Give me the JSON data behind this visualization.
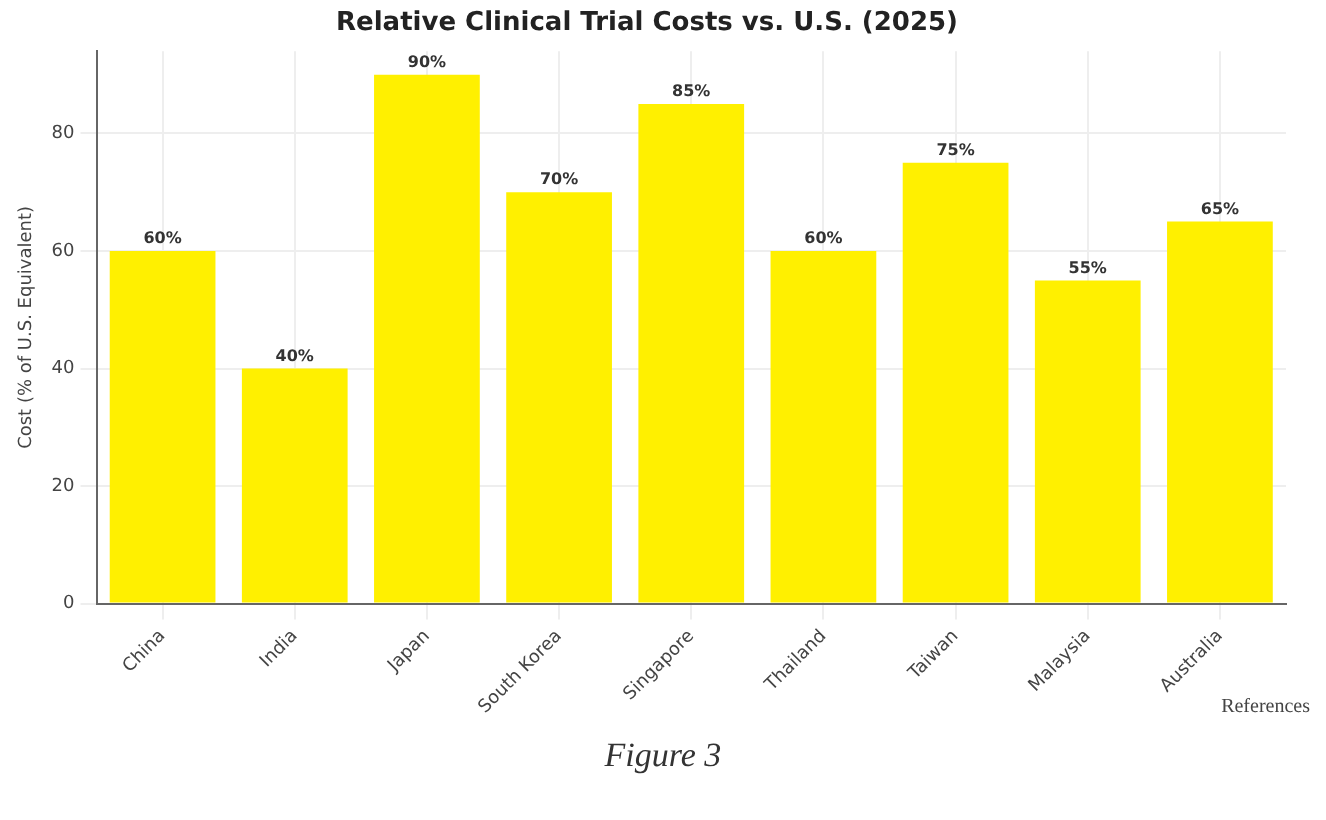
{
  "chart_data": {
    "type": "bar",
    "title": "Relative Clinical Trial Costs vs. U.S. (2025)",
    "ylabel": "Cost (% of U.S. Equivalent)",
    "categories": [
      "China",
      "India",
      "Japan",
      "South Korea",
      "Singapore",
      "Thailand",
      "Taiwan",
      "Malaysia",
      "Australia"
    ],
    "values": [
      60,
      40,
      90,
      70,
      85,
      60,
      75,
      55,
      65
    ],
    "value_labels": [
      "60%",
      "40%",
      "90%",
      "70%",
      "85%",
      "60%",
      "75%",
      "55%",
      "65%"
    ],
    "color": "#fff000",
    "ylim": [
      0,
      94
    ],
    "yticks": [
      0,
      20,
      40,
      60,
      80
    ],
    "grid": true,
    "annotations": [
      "References",
      "Figure 3"
    ]
  }
}
